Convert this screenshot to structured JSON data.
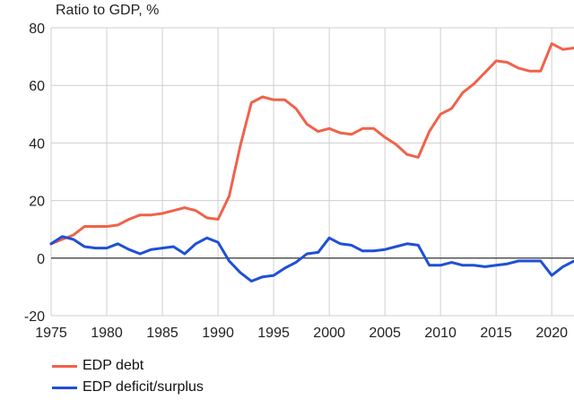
{
  "chart_data": {
    "type": "line",
    "ylabel": "Ratio to GDP, %",
    "xlim": [
      1975,
      2022
    ],
    "ylim": [
      -20,
      80
    ],
    "x_ticks": [
      1975,
      1980,
      1985,
      1990,
      1995,
      2000,
      2005,
      2010,
      2015,
      2020
    ],
    "y_ticks": [
      -20,
      0,
      20,
      40,
      60,
      80
    ],
    "grid": true,
    "legend_position": "bottom-left",
    "x": [
      1975,
      1976,
      1977,
      1978,
      1979,
      1980,
      1981,
      1982,
      1983,
      1984,
      1985,
      1986,
      1987,
      1988,
      1989,
      1990,
      1991,
      1992,
      1993,
      1994,
      1995,
      1996,
      1997,
      1998,
      1999,
      2000,
      2001,
      2002,
      2003,
      2004,
      2005,
      2006,
      2007,
      2008,
      2009,
      2010,
      2011,
      2012,
      2013,
      2014,
      2015,
      2016,
      2017,
      2018,
      2019,
      2020,
      2021,
      2022
    ],
    "series": [
      {
        "name": "EDP debt",
        "color": "#f0624a",
        "values": [
          5,
          6.5,
          8,
          11,
          11,
          11,
          11.5,
          13.5,
          15,
          15,
          15.5,
          16.5,
          17.5,
          16.5,
          14,
          13.5,
          21.5,
          39,
          54,
          56,
          55,
          55,
          52,
          46.5,
          44,
          45,
          43.5,
          43,
          45,
          45,
          42,
          39.5,
          36,
          35,
          44,
          50,
          52,
          57.5,
          60.5,
          64.5,
          68.5,
          68,
          66,
          65,
          65,
          74.5,
          72.5,
          73
        ]
      },
      {
        "name": "EDP deficit/surplus",
        "color": "#1f4fd6",
        "values": [
          5,
          7.5,
          6.5,
          4,
          3.5,
          3.5,
          5,
          3,
          1.5,
          3,
          3.5,
          4,
          1.5,
          5,
          7,
          5.5,
          -1,
          -5,
          -8,
          -6.5,
          -6,
          -3.5,
          -1.5,
          1.5,
          2,
          7,
          5,
          4.5,
          2.5,
          2.5,
          3,
          4,
          5,
          4.5,
          -2.5,
          -2.5,
          -1.5,
          -2.5,
          -2.5,
          -3,
          -2.5,
          -2,
          -1,
          -1,
          -1,
          -6,
          -3,
          -1
        ]
      }
    ]
  }
}
